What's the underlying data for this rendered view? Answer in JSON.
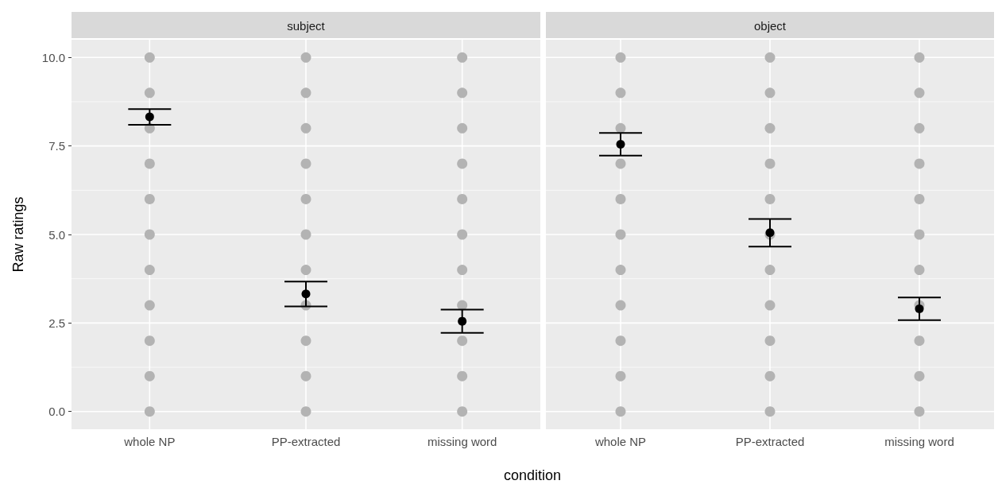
{
  "chart_data": [
    {
      "type": "scatter",
      "title": "subject",
      "xlabel": "condition",
      "ylabel": "Raw ratings",
      "categories": [
        "whole NP",
        "PP-extracted",
        "missing word"
      ],
      "ylim": [
        -0.5,
        10.5
      ],
      "yticks": [
        {
          "value": 0,
          "label": "0.0"
        },
        2.5,
        {
          "value": 5,
          "label": "5.0"
        },
        7.5,
        {
          "value": 10,
          "label": "10.0"
        }
      ],
      "grid": true,
      "series": [
        {
          "color": "#b3b3b3",
          "x": [
            "whole NP",
            "whole NP",
            "whole NP",
            "whole NP",
            "whole NP",
            "whole NP",
            "whole NP",
            "whole NP",
            "whole NP",
            "whole NP",
            "whole NP",
            "PP-extracted",
            "PP-extracted",
            "PP-extracted",
            "PP-extracted",
            "PP-extracted",
            "PP-extracted",
            "PP-extracted",
            "PP-extracted",
            "PP-extracted",
            "PP-extracted",
            "PP-extracted",
            "missing word",
            "missing word",
            "missing word",
            "missing word",
            "missing word",
            "missing word",
            "missing word",
            "missing word",
            "missing word",
            "missing word",
            "missing word"
          ],
          "values": [
            10,
            9,
            8,
            7,
            6,
            5,
            4,
            3,
            2,
            1,
            0,
            10,
            9,
            8,
            7,
            6,
            5,
            4,
            3,
            2,
            1,
            0,
            10,
            9,
            8,
            7,
            6,
            5,
            4,
            3,
            2,
            1,
            0
          ]
        },
        {
          "color": "#000000",
          "x": [
            "whole NP",
            "PP-extracted",
            "missing word"
          ],
          "values": [
            8.32,
            3.32,
            2.55
          ],
          "errors": [
            0.22,
            0.35,
            0.33
          ]
        }
      ]
    },
    {
      "type": "scatter",
      "title": "object",
      "categories": [
        "whole NP",
        "PP-extracted",
        "missing word"
      ],
      "ylim": [
        -0.5,
        10.5
      ],
      "yticks": [
        0,
        2.5,
        5,
        7.5,
        10
      ],
      "grid": true,
      "tick_labels": "x",
      "series": [
        {
          "color": "#b3b3b3",
          "x": [
            "whole NP",
            "whole NP",
            "whole NP",
            "whole NP",
            "whole NP",
            "whole NP",
            "whole NP",
            "whole NP",
            "whole NP",
            "whole NP",
            "whole NP",
            "PP-extracted",
            "PP-extracted",
            "PP-extracted",
            "PP-extracted",
            "PP-extracted",
            "PP-extracted",
            "PP-extracted",
            "PP-extracted",
            "PP-extracted",
            "PP-extracted",
            "PP-extracted",
            "missing word",
            "missing word",
            "missing word",
            "missing word",
            "missing word",
            "missing word",
            "missing word",
            "missing word",
            "missing word",
            "missing word",
            "missing word"
          ],
          "values": [
            10,
            9,
            8,
            7,
            6,
            5,
            4,
            3,
            2,
            1,
            0,
            10,
            9,
            8,
            7,
            6,
            5,
            4,
            3,
            2,
            1,
            0,
            10,
            9,
            8,
            7,
            6,
            5,
            4,
            3,
            2,
            1,
            0
          ]
        },
        {
          "color": "#000000",
          "x": [
            "whole NP",
            "PP-extracted",
            "missing word"
          ],
          "values": [
            7.55,
            5.05,
            2.9
          ],
          "errors": [
            0.32,
            0.39,
            0.32
          ]
        }
      ]
    }
  ]
}
